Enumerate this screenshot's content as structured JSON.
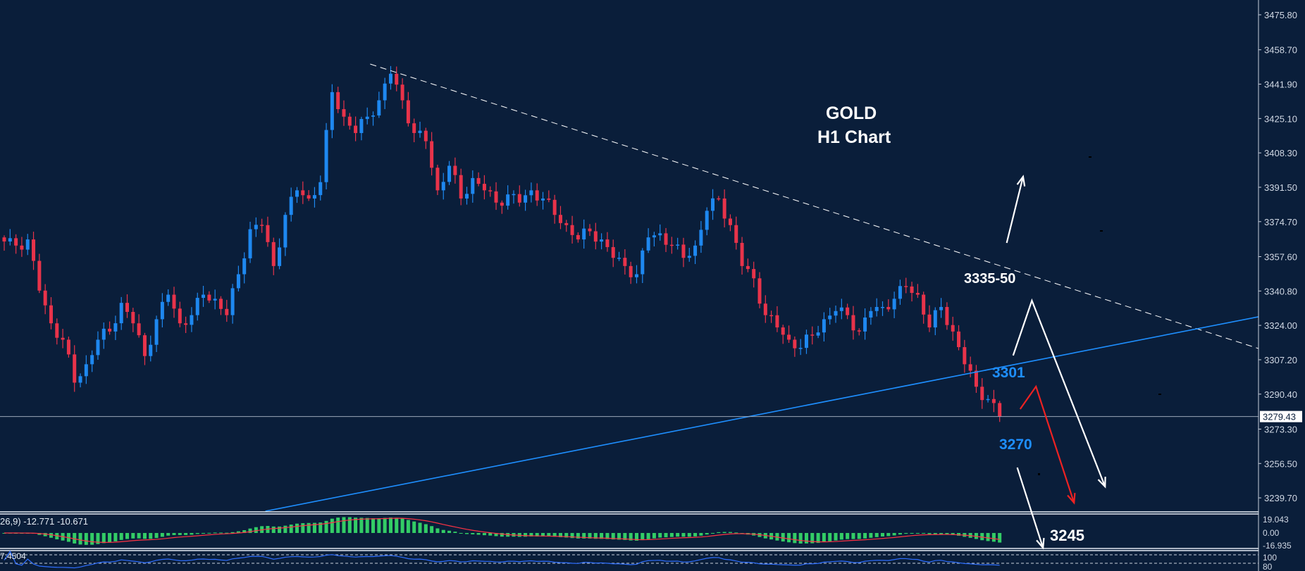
{
  "chart_data": {
    "type": "candlestick",
    "symbol_title": "GOLD",
    "timeframe_title": "H1 Chart",
    "ylim": [
      3233.2,
      3483.0
    ],
    "y_ticks": [
      "3475.80",
      "3458.70",
      "3441.90",
      "3425.10",
      "3408.30",
      "3391.50",
      "3374.70",
      "3357.60",
      "3340.80",
      "3324.00",
      "3307.20",
      "3290.40",
      "3273.30",
      "3256.50",
      "3239.70"
    ],
    "last_price": "3279.43",
    "close_path": [
      3365,
      3363,
      3366,
      3341,
      3325,
      3317,
      3296,
      3305,
      3317,
      3321,
      3335,
      3325,
      3309,
      3327,
      3339,
      3325,
      3329,
      3339,
      3337,
      3329,
      3349,
      3371,
      3373,
      3353,
      3378,
      3390,
      3386,
      3394,
      3438,
      3426,
      3418,
      3426,
      3434,
      3447,
      3434,
      3418,
      3414,
      3390,
      3402,
      3386,
      3396,
      3390,
      3384,
      3388,
      3384,
      3390,
      3386,
      3378,
      3373,
      3366,
      3370,
      3366,
      3357,
      3353,
      3349,
      3367,
      3369,
      3363,
      3357,
      3363,
      3380,
      3386,
      3373,
      3353,
      3347,
      3329,
      3323,
      3317,
      3313,
      3319,
      3327,
      3331,
      3329,
      3321,
      3331,
      3333,
      3337,
      3343,
      3339,
      3323,
      3333,
      3321,
      3305,
      3294,
      3288,
      3279.43
    ],
    "colors": {
      "background": "#0a1e3a",
      "bull": "#1e88f0",
      "bear": "#e8334a",
      "macd_hist": "#33cc66",
      "signal": "#ff3344",
      "trend_blue": "#1e8fff",
      "rsi_line": "#2f6fff"
    },
    "lines": {
      "resistance_dashed": {
        "from": [
          62.5,
          3451.7
        ],
        "to": [
          214.2,
          3312.7
        ],
        "color": "#ffffff"
      },
      "support_blue": {
        "from": [
          44.6,
          3233.2
        ],
        "to": [
          214.2,
          3328.2
        ],
        "color": "#1e8fff"
      }
    },
    "arrows": [
      {
        "color": "#ffffff",
        "points": [
          [
            171.2,
            3364.3
          ],
          [
            174.0,
            3396.7
          ]
        ]
      },
      {
        "color": "#ffffff",
        "points": [
          [
            172.3,
            3309.3
          ],
          [
            175.5,
            3336.1
          ],
          [
            188.0,
            3245.2
          ]
        ]
      },
      {
        "color": "#ee2222",
        "points": [
          [
            173.5,
            3283.1
          ],
          [
            176.2,
            3294.1
          ],
          [
            182.7,
            3237.3
          ]
        ]
      },
      {
        "color": "#ffffff",
        "points": [
          [
            173.0,
            3254.5
          ],
          [
            177.4,
            3215.3
          ]
        ]
      }
    ],
    "annotations": {
      "zone": "3335-50",
      "level_3301": "3301",
      "level_3270": "3270",
      "target_3245": "3245"
    },
    "macd": {
      "label": "26,9) -12.771 -10.671",
      "ticks": [
        "19.043",
        "0.00",
        "-16.935"
      ]
    },
    "oscillator": {
      "label": "7.4504",
      "ticks": [
        "100",
        "80"
      ]
    }
  }
}
